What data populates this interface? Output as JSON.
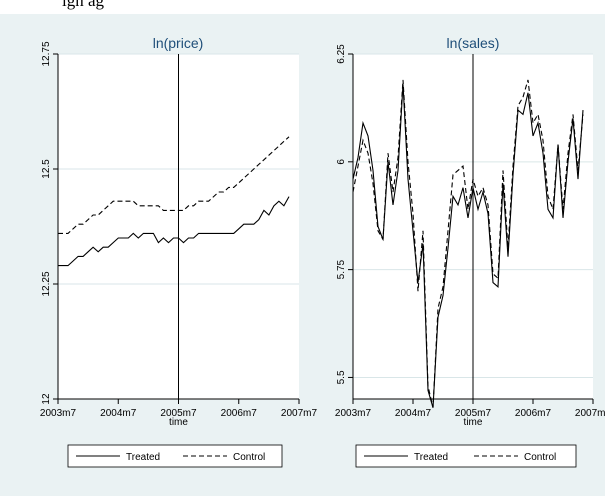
{
  "caption_fragment": "ign            ag",
  "colors": {
    "background": "#eaf2f3",
    "plot_region": "#ffffff",
    "grid": "#d9e6e8",
    "title": "#1e4e79",
    "line": "#000000"
  },
  "chart_data": [
    {
      "type": "line",
      "title": "ln(price)",
      "xlabel": "time",
      "ylabel": "",
      "xlim": [
        "2003m7",
        "2007m7"
      ],
      "ylim": [
        12,
        12.75
      ],
      "yticks": [
        12,
        12.25,
        12.5,
        12.75
      ],
      "yticklabels": [
        "12",
        "12.25",
        "12.5",
        "12.75"
      ],
      "xtick_labels": [
        "2003m7",
        "2004m7",
        "2005m7",
        "2006m7",
        "2007m7"
      ],
      "vline": "2005m7",
      "grid": true,
      "legend_position": "bottom",
      "x": [
        "2003m7",
        "2003m8",
        "2003m9",
        "2003m10",
        "2003m11",
        "2003m12",
        "2004m1",
        "2004m2",
        "2004m3",
        "2004m4",
        "2004m5",
        "2004m6",
        "2004m7",
        "2004m8",
        "2004m9",
        "2004m10",
        "2004m11",
        "2004m12",
        "2005m1",
        "2005m2",
        "2005m3",
        "2005m4",
        "2005m5",
        "2005m6",
        "2005m7",
        "2005m8",
        "2005m9",
        "2005m10",
        "2005m11",
        "2005m12",
        "2006m1",
        "2006m2",
        "2006m3",
        "2006m4",
        "2006m5",
        "2006m6",
        "2006m7",
        "2006m8",
        "2006m9",
        "2006m10",
        "2006m11",
        "2006m12",
        "2007m1",
        "2007m2",
        "2007m3",
        "2007m4",
        "2007m5"
      ],
      "series": [
        {
          "name": "Treated",
          "style": "solid",
          "values": [
            12.29,
            12.29,
            12.29,
            12.3,
            12.31,
            12.31,
            12.32,
            12.33,
            12.32,
            12.33,
            12.33,
            12.34,
            12.35,
            12.35,
            12.35,
            12.36,
            12.35,
            12.36,
            12.36,
            12.36,
            12.34,
            12.35,
            12.34,
            12.35,
            12.35,
            12.34,
            12.35,
            12.35,
            12.36,
            12.36,
            12.36,
            12.36,
            12.36,
            12.36,
            12.36,
            12.36,
            12.37,
            12.38,
            12.38,
            12.38,
            12.39,
            12.41,
            12.4,
            12.42,
            12.43,
            12.42,
            12.44
          ]
        },
        {
          "name": "Control",
          "style": "dashed",
          "values": [
            12.36,
            12.36,
            12.36,
            12.37,
            12.38,
            12.38,
            12.39,
            12.4,
            12.4,
            12.41,
            12.42,
            12.43,
            12.43,
            12.43,
            12.43,
            12.43,
            12.42,
            12.42,
            12.42,
            12.42,
            12.42,
            12.41,
            12.41,
            12.41,
            12.41,
            12.41,
            12.42,
            12.42,
            12.43,
            12.43,
            12.43,
            12.44,
            12.45,
            12.45,
            12.46,
            12.46,
            12.47,
            12.48,
            12.49,
            12.5,
            12.51,
            12.52,
            12.53,
            12.54,
            12.55,
            12.56,
            12.57
          ]
        }
      ]
    },
    {
      "type": "line",
      "title": "ln(sales)",
      "xlabel": "time",
      "ylabel": "",
      "xlim": [
        "2003m7",
        "2007m7"
      ],
      "ylim": [
        5.45,
        6.25
      ],
      "yticks": [
        5.5,
        5.75,
        6,
        6.25
      ],
      "yticklabels": [
        "5.5",
        "5.75",
        "6",
        "6.25"
      ],
      "xtick_labels": [
        "2003m7",
        "2004m7",
        "2005m7",
        "2006m7",
        "2007m7"
      ],
      "vline": "2005m7",
      "grid": true,
      "legend_position": "bottom",
      "x": [
        "2003m7",
        "2003m8",
        "2003m9",
        "2003m10",
        "2003m11",
        "2003m12",
        "2004m1",
        "2004m2",
        "2004m3",
        "2004m4",
        "2004m5",
        "2004m6",
        "2004m7",
        "2004m8",
        "2004m9",
        "2004m10",
        "2004m11",
        "2004m12",
        "2005m1",
        "2005m2",
        "2005m3",
        "2005m4",
        "2005m5",
        "2005m6",
        "2005m7",
        "2005m8",
        "2005m9",
        "2005m10",
        "2005m11",
        "2005m12",
        "2006m1",
        "2006m2",
        "2006m3",
        "2006m4",
        "2006m5",
        "2006m6",
        "2006m7",
        "2006m8",
        "2006m9",
        "2006m10",
        "2006m11",
        "2006m12",
        "2007m1",
        "2007m2",
        "2007m3",
        "2007m4",
        "2007m5"
      ],
      "series": [
        {
          "name": "Treated",
          "style": "solid",
          "values": [
            5.96,
            6.01,
            6.09,
            6.06,
            5.98,
            5.85,
            5.82,
            6.0,
            5.9,
            5.98,
            6.18,
            5.96,
            5.84,
            5.72,
            5.81,
            5.47,
            5.43,
            5.64,
            5.69,
            5.8,
            5.92,
            5.9,
            5.94,
            5.87,
            5.94,
            5.89,
            5.93,
            5.88,
            5.72,
            5.71,
            5.95,
            5.78,
            5.97,
            6.12,
            6.11,
            6.16,
            6.06,
            6.09,
            6.02,
            5.89,
            5.87,
            6.04,
            5.87,
            6.0,
            6.1,
            5.96,
            6.12
          ]
        },
        {
          "name": "Control",
          "style": "dashed",
          "values": [
            5.93,
            5.99,
            6.05,
            6.02,
            5.95,
            5.84,
            5.82,
            6.02,
            5.93,
            6.01,
            6.19,
            6.0,
            5.88,
            5.7,
            5.84,
            5.48,
            5.43,
            5.66,
            5.71,
            5.84,
            5.97,
            5.98,
            5.99,
            5.89,
            5.96,
            5.92,
            5.94,
            5.9,
            5.74,
            5.73,
            5.98,
            5.8,
            5.99,
            6.13,
            6.15,
            6.19,
            6.09,
            6.11,
            6.05,
            5.92,
            5.89,
            6.04,
            5.89,
            6.02,
            6.11,
            5.98,
            6.11
          ]
        }
      ]
    }
  ]
}
